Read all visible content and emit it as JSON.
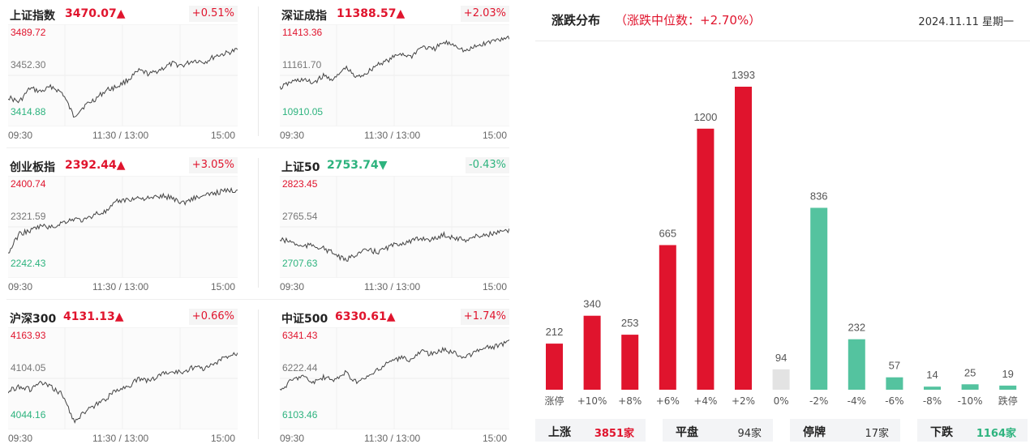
{
  "colors": {
    "up": "#e0142d",
    "down": "#2db37e",
    "flat": "#e3e3e3"
  },
  "indices": [
    {
      "name": "上证指数",
      "value": "3470.07",
      "arrow": "▲",
      "direction": "up",
      "change": "+0.51%",
      "y_high": "3489.72",
      "y_mid": "3452.30",
      "y_low": "3414.88",
      "x_labels": [
        "09:30",
        "11:30 / 13:00",
        "15:00"
      ]
    },
    {
      "name": "深证成指",
      "value": "11388.57",
      "arrow": "▲",
      "direction": "up",
      "change": "+2.03%",
      "y_high": "11413.36",
      "y_mid": "11161.70",
      "y_low": "10910.05",
      "x_labels": [
        "09:30",
        "11:30 / 13:00",
        "15:00"
      ]
    },
    {
      "name": "创业板指",
      "value": "2392.44",
      "arrow": "▲",
      "direction": "up",
      "change": "+3.05%",
      "y_high": "2400.74",
      "y_mid": "2321.59",
      "y_low": "2242.43",
      "x_labels": [
        "09:30",
        "11:30 / 13:00",
        "15:00"
      ]
    },
    {
      "name": "上证50",
      "value": "2753.74",
      "arrow": "▼",
      "direction": "down",
      "change": "-0.43%",
      "y_high": "2823.45",
      "y_mid": "2765.54",
      "y_low": "2707.63",
      "x_labels": [
        "09:30",
        "11:30 / 13:00",
        "15:00"
      ]
    },
    {
      "name": "沪深300",
      "value": "4131.13",
      "arrow": "▲",
      "direction": "up",
      "change": "+0.66%",
      "y_high": "4163.93",
      "y_mid": "4104.05",
      "y_low": "4044.16",
      "x_labels": [
        "09:30",
        "11:30 / 13:00",
        "15:00"
      ]
    },
    {
      "name": "中证500",
      "value": "6330.61",
      "arrow": "▲",
      "direction": "up",
      "change": "+1.74%",
      "y_high": "6341.43",
      "y_mid": "6222.44",
      "y_low": "6103.46",
      "x_labels": [
        "09:30",
        "11:30 / 13:00",
        "15:00"
      ]
    }
  ],
  "distribution": {
    "title": "涨跌分布",
    "subtitle": "（涨跌中位数：+2.70%）",
    "date": "2024.11.11 星期一"
  },
  "chart_data": {
    "type": "bar",
    "categories": [
      "涨停",
      "+10%",
      "+8%",
      "+6%",
      "+4%",
      "+2%",
      "0%",
      "-2%",
      "-4%",
      "-6%",
      "-8%",
      "-10%",
      "跌停"
    ],
    "values": [
      212,
      340,
      253,
      665,
      1200,
      1393,
      94,
      836,
      232,
      57,
      14,
      25,
      19
    ],
    "bar_colors": [
      "#e0142d",
      "#e0142d",
      "#e0142d",
      "#e0142d",
      "#e0142d",
      "#e0142d",
      "#e3e3e3",
      "#54c39f",
      "#54c39f",
      "#54c39f",
      "#54c39f",
      "#54c39f",
      "#54c39f"
    ],
    "ylim": [
      0,
      1393
    ]
  },
  "summary": [
    {
      "label": "上涨",
      "value": "3851家",
      "tone": "up"
    },
    {
      "label": "平盘",
      "value": "94家",
      "tone": "neutral"
    },
    {
      "label": "停牌",
      "value": "17家",
      "tone": "neutral"
    },
    {
      "label": "下跌",
      "value": "1164家",
      "tone": "down"
    }
  ]
}
